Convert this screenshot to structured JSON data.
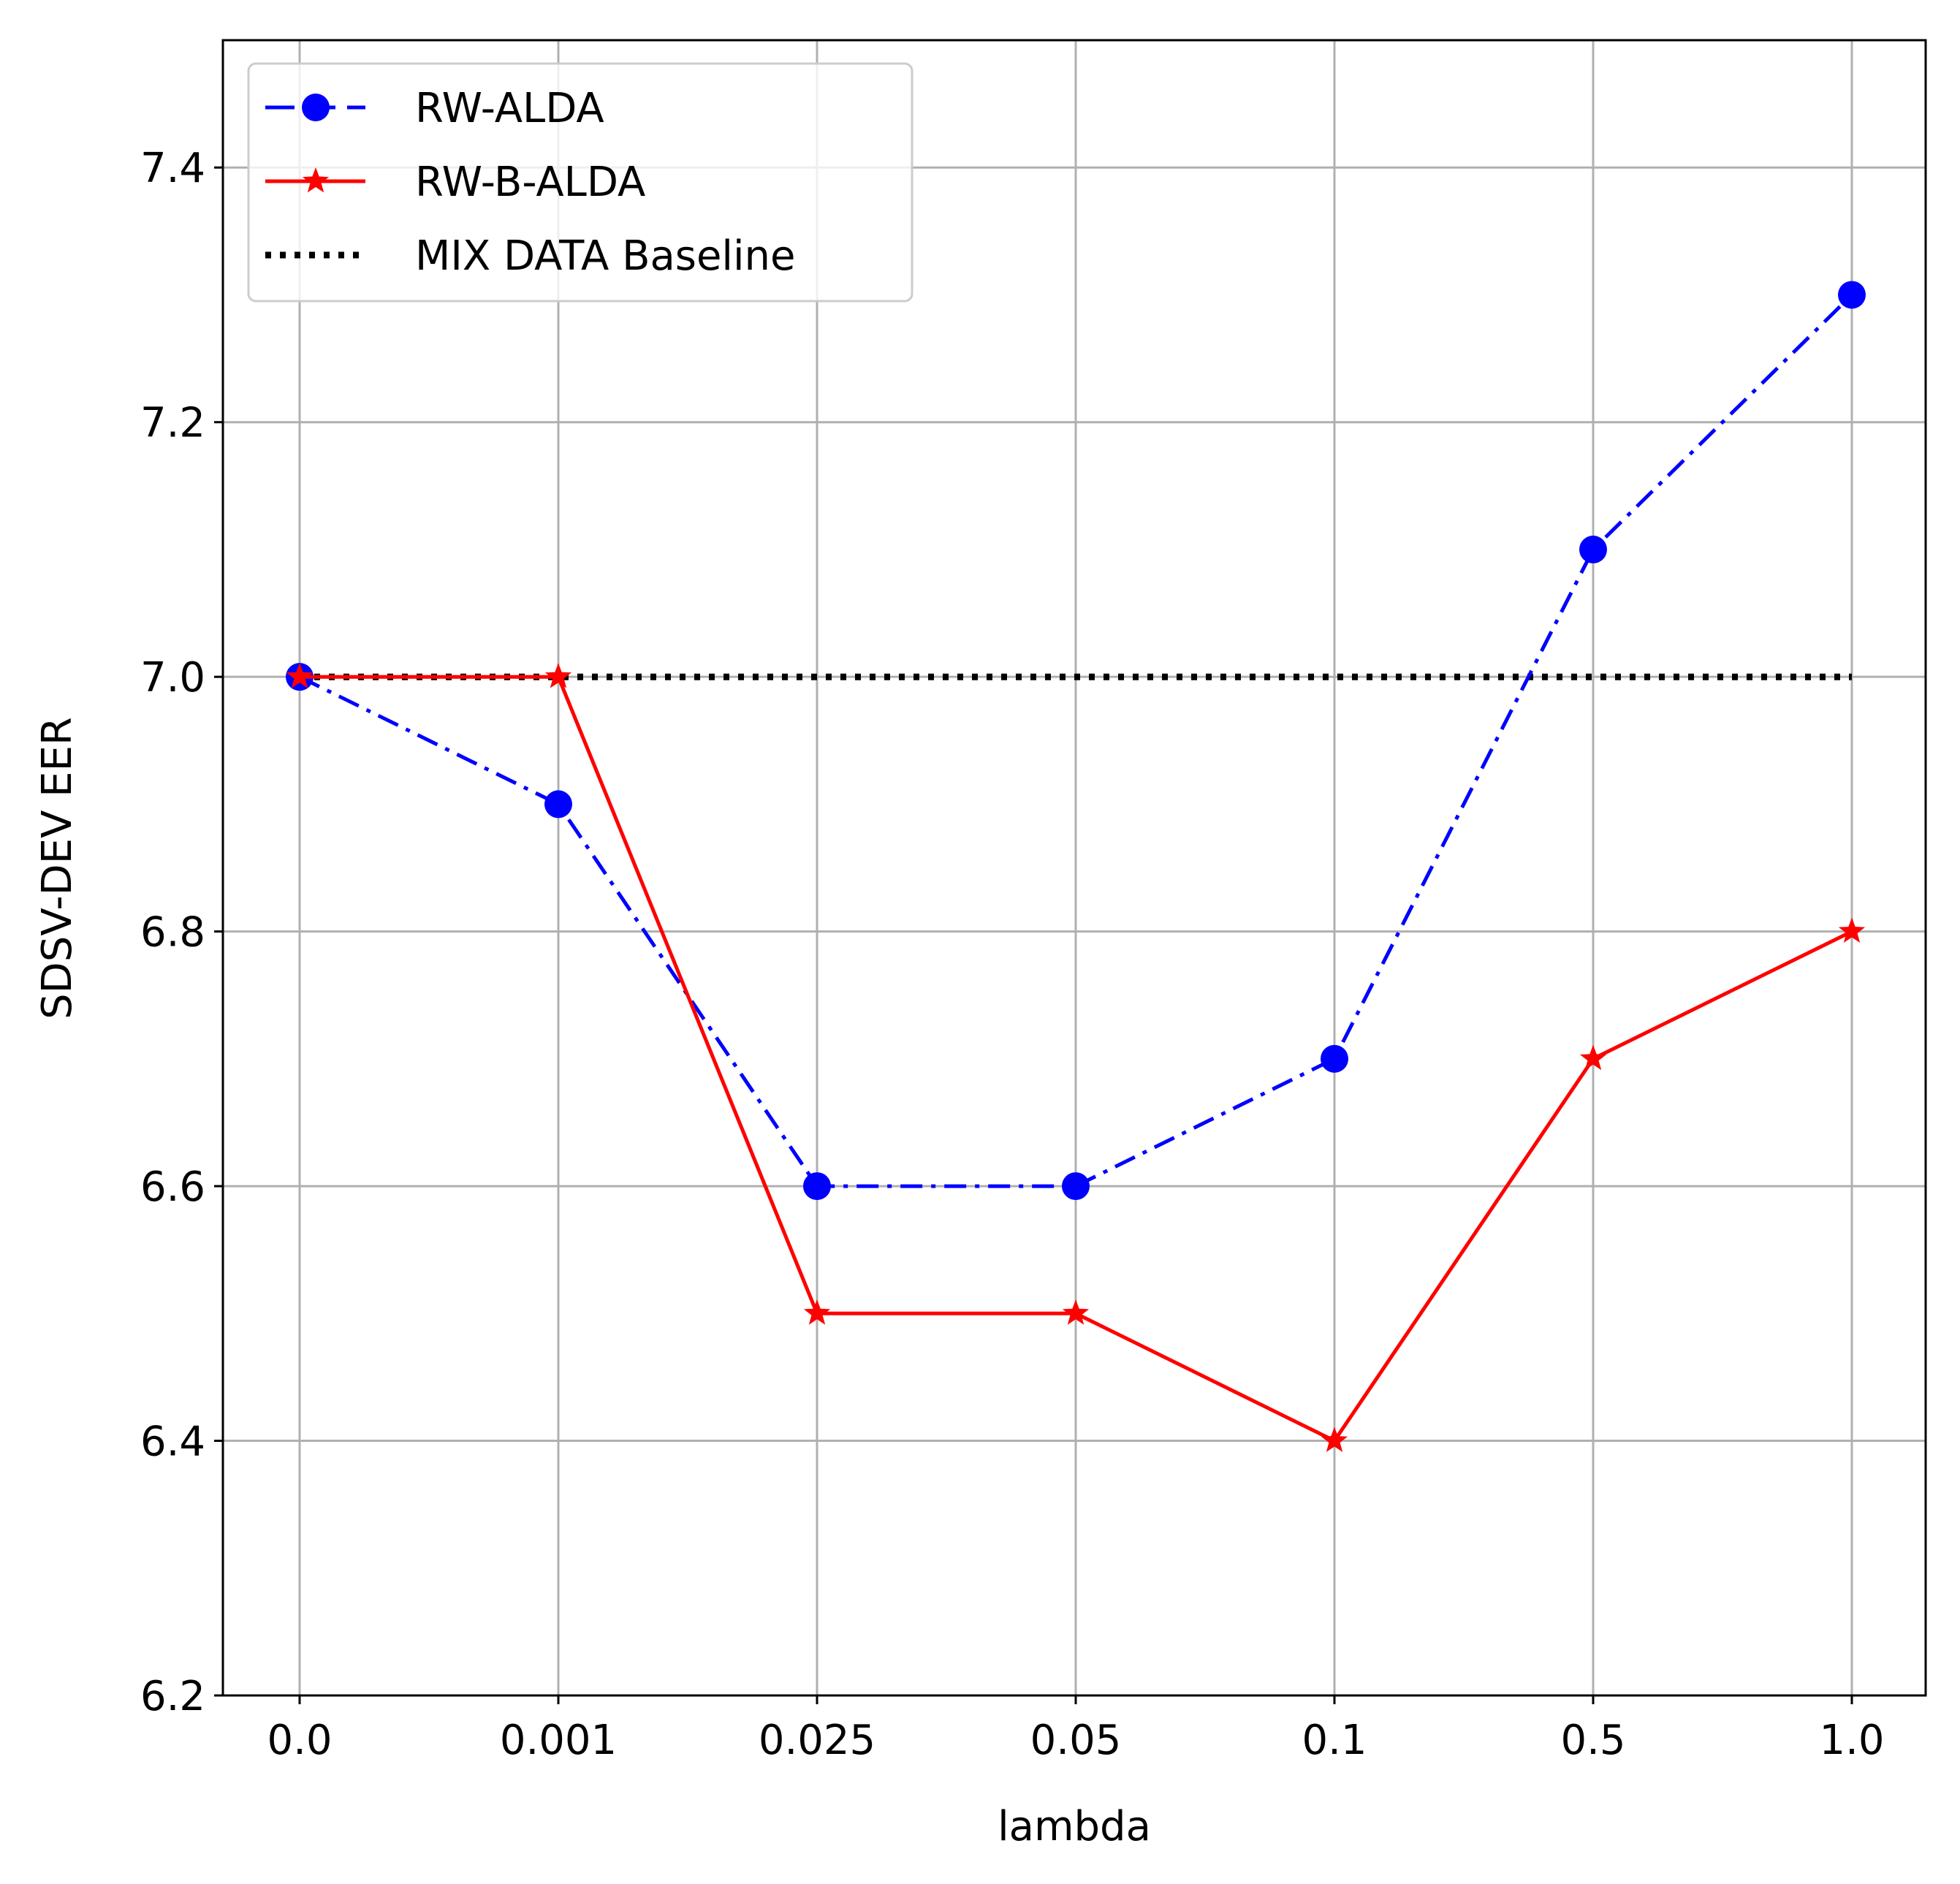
{
  "chart_data": {
    "type": "line",
    "title": "",
    "xlabel": "lambda",
    "ylabel": "SDSV-DEV EER",
    "categories": [
      "0.0",
      "0.001",
      "0.025",
      "0.05",
      "0.1",
      "0.5",
      "1.0"
    ],
    "ylim": [
      6.2,
      7.5
    ],
    "yticks": [
      "6.2",
      "6.4",
      "6.6",
      "6.8",
      "7.0",
      "7.2",
      "7.4"
    ],
    "grid": true,
    "legend_position": "top-left",
    "series": [
      {
        "name": "RW-ALDA",
        "values": [
          7.0,
          6.9,
          6.6,
          6.6,
          6.7,
          7.1,
          7.3
        ],
        "color": "#0000ff",
        "linestyle": "dash-dot",
        "marker": "circle"
      },
      {
        "name": "RW-B-ALDA",
        "values": [
          7.0,
          7.0,
          6.5,
          6.5,
          6.4,
          6.7,
          6.8
        ],
        "color": "#ff0000",
        "linestyle": "solid",
        "marker": "star"
      },
      {
        "name": "MIX DATA Baseline",
        "values": [
          7.0,
          7.0,
          7.0,
          7.0,
          7.0,
          7.0,
          7.0
        ],
        "color": "#000000",
        "linestyle": "dotted",
        "marker": "none"
      }
    ]
  }
}
